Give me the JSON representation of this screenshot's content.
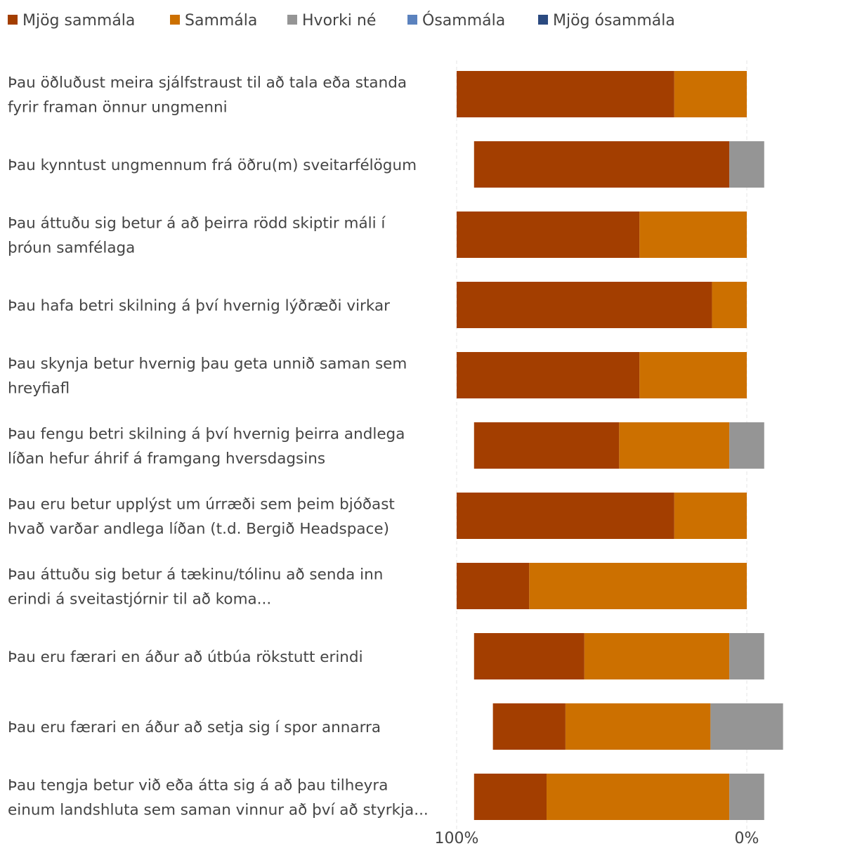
{
  "chart_data": {
    "type": "bar",
    "orientation": "horizontal",
    "stacking": "diverging",
    "title": "",
    "xlabel": "",
    "ylabel": "",
    "x_tick_labels": [
      "100%",
      "0%"
    ],
    "grid": true,
    "legend_position": "top",
    "series": [
      {
        "name": "Mjög sammála",
        "color": "#A33E00",
        "side": "left",
        "values": [
          75,
          88,
          63,
          88,
          63,
          50,
          75,
          25,
          38,
          25,
          25
        ]
      },
      {
        "name": "Sammála",
        "color": "#CC7000",
        "side": "left",
        "values": [
          25,
          0,
          37,
          12,
          37,
          38,
          25,
          75,
          50,
          50,
          63
        ]
      },
      {
        "name": "Hvorki né",
        "color": "#959595",
        "side": "split",
        "values": [
          0,
          12,
          0,
          0,
          0,
          12,
          0,
          0,
          12,
          25,
          12
        ]
      },
      {
        "name": "Ósammála",
        "color": "#5B82BE",
        "side": "right",
        "values": [
          0,
          0,
          0,
          0,
          0,
          0,
          0,
          0,
          0,
          0,
          0
        ]
      },
      {
        "name": "Mjög ósammála",
        "color": "#2B4A80",
        "side": "right",
        "values": [
          0,
          0,
          0,
          0,
          0,
          0,
          0,
          0,
          0,
          0,
          0
        ]
      }
    ],
    "categories": [
      {
        "lines": [
          "Þau öðluðust meira sjálfstraust til að tala eða standa",
          "fyrir framan önnur ungmenni"
        ]
      },
      {
        "lines": [
          "Þau kynntust ungmennum frá öðru(m) sveitarfélögum"
        ]
      },
      {
        "lines": [
          "Þau áttuðu sig betur á að þeirra rödd skiptir máli í",
          "þróun samfélaga"
        ]
      },
      {
        "lines": [
          "Þau hafa betri skilning á því hvernig lýðræði virkar"
        ]
      },
      {
        "lines": [
          "Þau skynja betur hvernig þau geta unnið saman sem",
          "hreyfiafl"
        ]
      },
      {
        "lines": [
          "Þau fengu betri skilning á því hvernig þeirra andlega",
          "líðan hefur áhrif á framgang hversdagsins"
        ]
      },
      {
        "lines": [
          "Þau eru betur upplýst um úrræði sem þeim bjóðast",
          "hvað varðar andlega líðan (t.d. Bergið Headspace)"
        ]
      },
      {
        "lines": [
          "Þau áttuðu sig betur á tækinu/tólinu að senda inn",
          "erindi á sveitastjórnir til að koma..."
        ]
      },
      {
        "lines": [
          "Þau eru færari en áður að útbúa rökstutt erindi"
        ]
      },
      {
        "lines": [
          "Þau eru færari en áður að setja sig í spor annarra"
        ]
      },
      {
        "lines": [
          "Þau tengja betur við eða átta sig á að þau tilheyra",
          "einum landshluta sem saman vinnur að því að styrkja..."
        ]
      }
    ]
  }
}
